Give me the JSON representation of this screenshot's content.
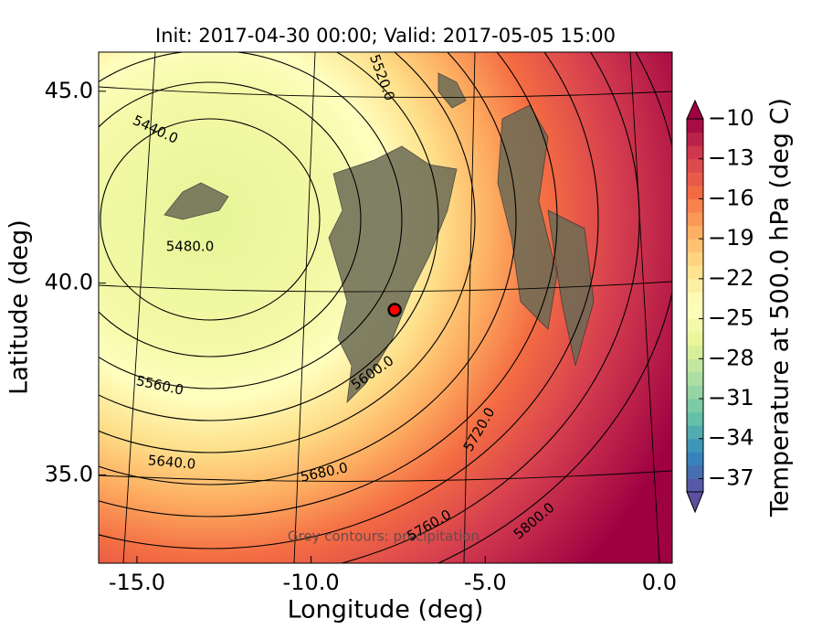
{
  "chart_data": {
    "type": "contour",
    "title": "Init: 2017-04-30 00:00; Valid: 2017-05-05 15:00",
    "x_label": "Longitude (deg)",
    "y_label": "Latitude (deg)",
    "xlim": [
      -16.1,
      0.37
    ],
    "ylim": [
      32.7,
      46.02
    ],
    "xticks": [
      {
        "value": -15,
        "label": "-15.0"
      },
      {
        "value": -10,
        "label": "-10.0"
      },
      {
        "value": -5,
        "label": "-5.0"
      },
      {
        "value": 0,
        "label": "0.0"
      }
    ],
    "yticks": [
      {
        "value": 35,
        "label": "35.0"
      },
      {
        "value": 40,
        "label": "40.0"
      },
      {
        "value": 45,
        "label": "45.0"
      }
    ],
    "colorbar": {
      "label": "Temperature at 500.0 hPa (deg C)",
      "lim": [
        -38,
        -10
      ],
      "ticks": [
        {
          "value": -10,
          "label": "−10"
        },
        {
          "value": -13,
          "label": "−13"
        },
        {
          "value": -16,
          "label": "−16"
        },
        {
          "value": -19,
          "label": "−19"
        },
        {
          "value": -22,
          "label": "−22"
        },
        {
          "value": -25,
          "label": "−25"
        },
        {
          "value": -28,
          "label": "−28"
        },
        {
          "value": -31,
          "label": "−31"
        },
        {
          "value": -34,
          "label": "−34"
        },
        {
          "value": -37,
          "label": "−37"
        }
      ]
    },
    "contour_labels": [
      "5520.0",
      "5440.0",
      "5480.0",
      "5560.0",
      "5600.0",
      "5640.0",
      "5680.0",
      "5720.0",
      "5760.0",
      "5800.0"
    ],
    "marker": {
      "x": -7.6,
      "y": 39.3,
      "color": "#ff0000"
    },
    "annotation": "Grey contours: precipitation"
  }
}
